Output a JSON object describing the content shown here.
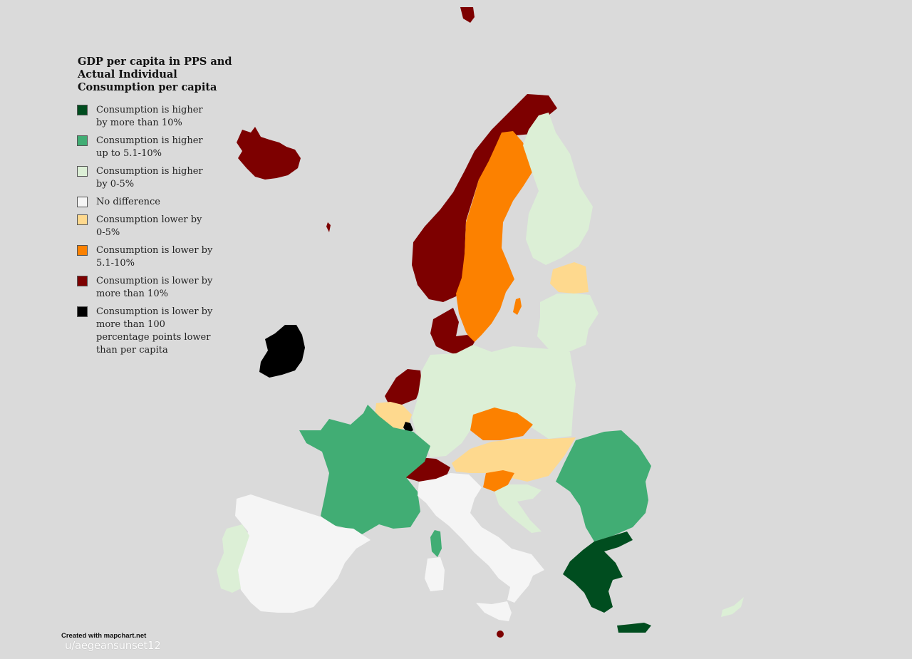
{
  "title_lines": [
    "GDP per capita in PPS and",
    "Actual Individual",
    "Consumption per capita"
  ],
  "colors": {
    "background": "#dadada",
    "higher_gt10": "#004d1f",
    "higher_5_10": "#41ad74",
    "higher_0_5": "#dcefd6",
    "no_difference": "#f5f5f5",
    "lower_0_5": "#fed98e",
    "lower_5_10": "#fc8100",
    "lower_gt10": "#7d0000",
    "lower_gt100": "#000000"
  },
  "legend": [
    {
      "lines": [
        "Consumption is higher",
        "by more than 10%"
      ],
      "color": "#004d1f"
    },
    {
      "lines": [
        "Consumption is higher",
        "up to 5.1-10%"
      ],
      "color": "#41ad74"
    },
    {
      "lines": [
        "Consumption is higher",
        "by 0-5%"
      ],
      "color": "#dcefd6"
    },
    {
      "lines": [
        "No difference"
      ],
      "color": "#f5f5f5"
    },
    {
      "lines": [
        "Consumption lower by",
        "0-5%"
      ],
      "color": "#fed98e"
    },
    {
      "lines": [
        "Consumption is lower by",
        "5.1-10%"
      ],
      "color": "#fc8100"
    },
    {
      "lines": [
        "Consumption is lower by",
        "more than 10%"
      ],
      "color": "#7d0000"
    },
    {
      "lines": [
        "Consumption is lower by",
        "more than 100",
        "percentage points lower",
        "than per capita"
      ],
      "color": "#000000"
    }
  ],
  "credit": "Created with mapchart.net",
  "signature": "u/aegeansunset12"
}
